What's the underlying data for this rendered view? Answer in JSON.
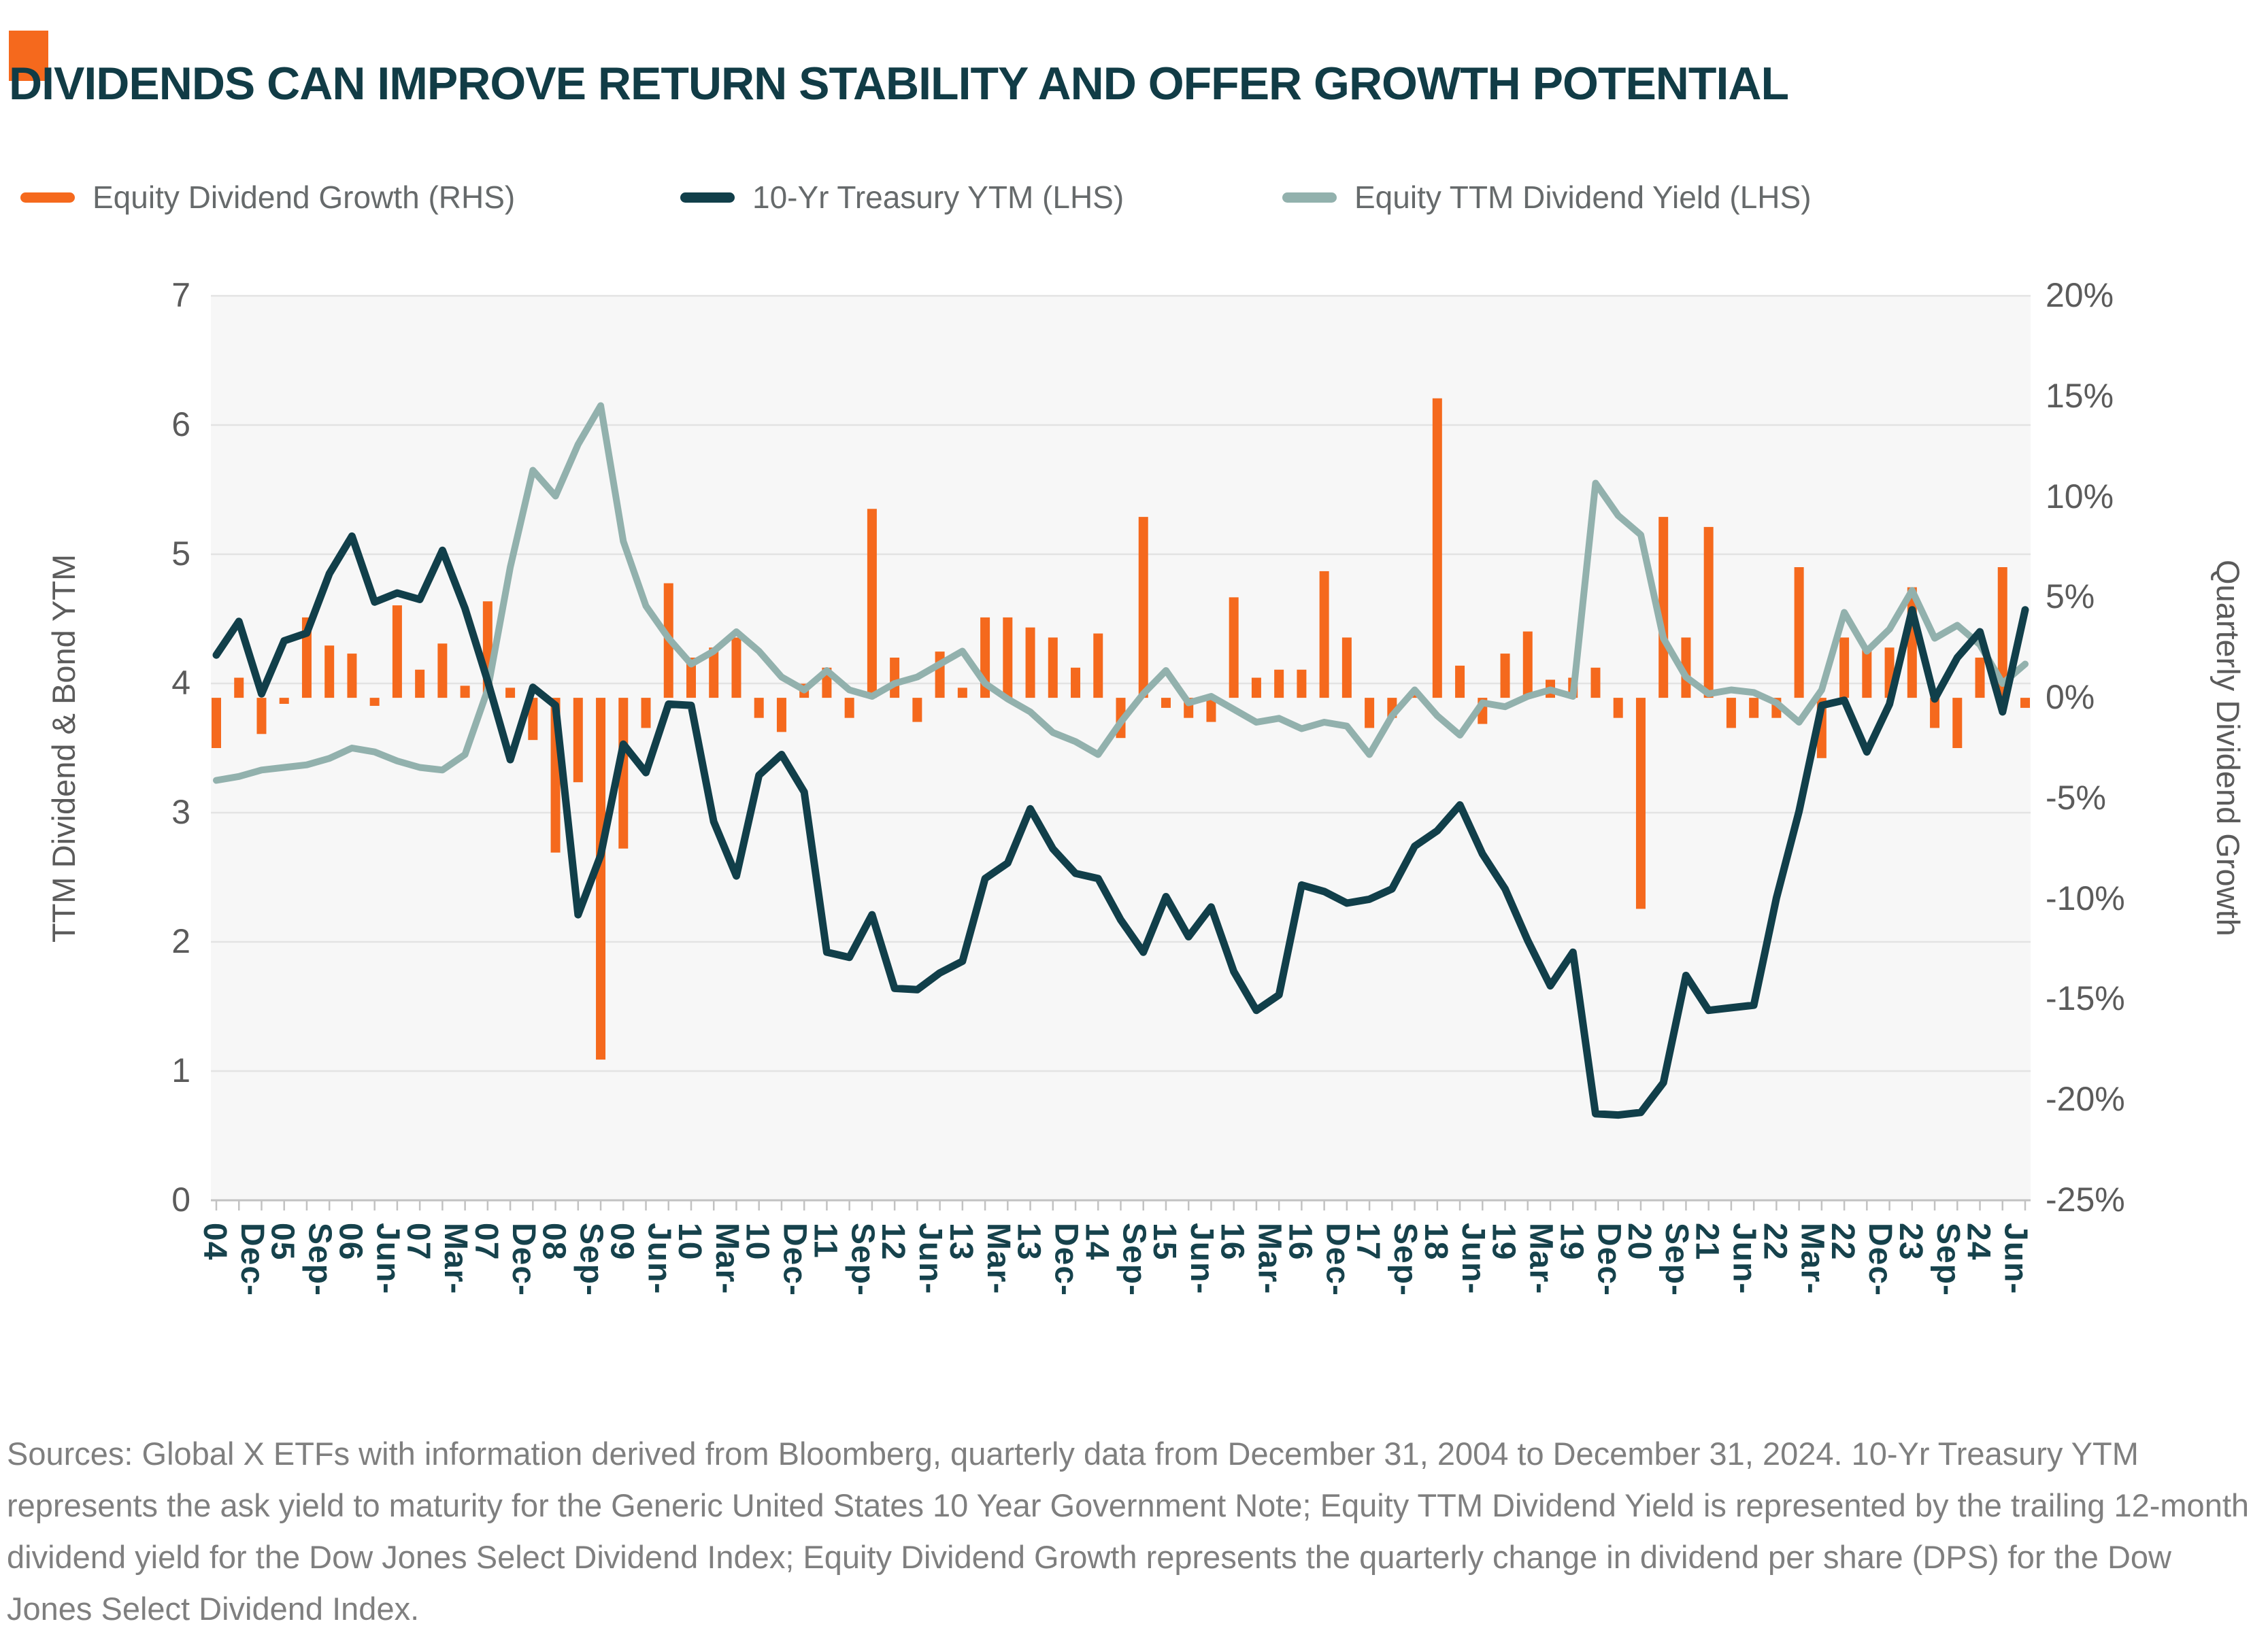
{
  "header": {
    "title": "DIVIDENDS CAN IMPROVE RETURN STABILITY AND OFFER GROWTH POTENTIAL",
    "title_color": "#113c46",
    "accent_color": "#f5691d"
  },
  "legend": [
    {
      "label": "Equity Dividend Growth (RHS)",
      "color": "#f5691d"
    },
    {
      "label": "10-Yr Treasury YTM (LHS)",
      "color": "#113f4a"
    },
    {
      "label": "Equity TTM Dividend Yield (LHS)",
      "color": "#92b1ad"
    }
  ],
  "footer": {
    "text": "Sources: Global X ETFs with information derived from Bloomberg, quarterly data from December 31, 2004 to December 31, 2024. 10-Yr Treasury YTM represents the ask yield to maturity for the Generic United States 10 Year Government Note; Equity TTM Dividend Yield is represented by the trailing 12-month dividend yield for the Dow Jones Select Dividend Index; Equity Dividend Growth represents the quarterly change in dividend per share (DPS) for the Dow Jones Select Dividend Index."
  },
  "chart_data": {
    "type": "bar",
    "subtype": "combo-bar-plus-two-lines",
    "title": "",
    "grid": "horizontal",
    "legend_position": "top",
    "plot_bg": "#f7f7f7",
    "gridline_color": "#e3e3e3",
    "axis_line_color": "#c2c2c2",
    "x_label_color": "#16424c",
    "left_axis": {
      "label": "TTM Dividend & Bond YTM",
      "min": 0,
      "max": 7,
      "ticks": [
        "0",
        "1",
        "2",
        "3",
        "4",
        "5",
        "6",
        "7"
      ]
    },
    "right_axis": {
      "label": "Quarterly Dividend Growth",
      "min": -25,
      "max": 20,
      "ticks": [
        "20%",
        "15%",
        "10%",
        "5%",
        "0%",
        "-5%",
        "-10%",
        "-15%",
        "-20%",
        "-25%"
      ]
    },
    "x_tick_labels": [
      "Dec-04",
      "Sep-05",
      "Jun-06",
      "Mar-07",
      "Dec-07",
      "Sep-08",
      "Jun-09",
      "Mar-10",
      "Dec-10",
      "Sep-11",
      "Jun-12",
      "Mar-13",
      "Dec-13",
      "Sep-14",
      "Jun-15",
      "Mar-16",
      "Dec-16",
      "Sep-17",
      "Jun-18",
      "Mar-19",
      "Dec-19",
      "Sep-20",
      "Jun-21",
      "Mar-22",
      "Dec-22",
      "Sep-23",
      "Jun-24"
    ],
    "x_tick_every": 3,
    "categories": [
      "Dec-04",
      "Mar-05",
      "Jun-05",
      "Sep-05",
      "Dec-05",
      "Mar-06",
      "Jun-06",
      "Sep-06",
      "Dec-06",
      "Mar-07",
      "Jun-07",
      "Sep-07",
      "Dec-07",
      "Mar-08",
      "Jun-08",
      "Sep-08",
      "Dec-08",
      "Mar-09",
      "Jun-09",
      "Sep-09",
      "Dec-09",
      "Mar-10",
      "Jun-10",
      "Sep-10",
      "Dec-10",
      "Mar-11",
      "Jun-11",
      "Sep-11",
      "Dec-11",
      "Mar-12",
      "Jun-12",
      "Sep-12",
      "Dec-12",
      "Mar-13",
      "Jun-13",
      "Sep-13",
      "Dec-13",
      "Mar-14",
      "Jun-14",
      "Sep-14",
      "Dec-14",
      "Mar-15",
      "Jun-15",
      "Sep-15",
      "Dec-15",
      "Mar-16",
      "Jun-16",
      "Sep-16",
      "Dec-16",
      "Mar-17",
      "Jun-17",
      "Sep-17",
      "Dec-17",
      "Mar-18",
      "Jun-18",
      "Sep-18",
      "Dec-18",
      "Mar-19",
      "Jun-19",
      "Sep-19",
      "Dec-19",
      "Mar-20",
      "Jun-20",
      "Sep-20",
      "Dec-20",
      "Mar-21",
      "Jun-21",
      "Sep-21",
      "Dec-21",
      "Mar-22",
      "Jun-22",
      "Sep-22",
      "Dec-22",
      "Mar-23",
      "Jun-23",
      "Sep-23",
      "Dec-23",
      "Mar-24",
      "Jun-24",
      "Sep-24",
      "Dec-24"
    ],
    "series": [
      {
        "name": "Equity Dividend Growth (RHS)",
        "type": "bar",
        "axis": "right",
        "unit": "%",
        "color": "#f5691d",
        "values": [
          -2.5,
          1.0,
          -1.8,
          -0.3,
          4.0,
          2.6,
          2.2,
          -0.4,
          4.6,
          1.4,
          2.7,
          0.6,
          4.8,
          0.5,
          -2.1,
          -7.7,
          -4.2,
          -18.0,
          -7.5,
          -1.5,
          5.7,
          2.0,
          2.5,
          3.0,
          -1.0,
          -1.7,
          0.7,
          1.5,
          -1.0,
          9.4,
          2.0,
          -1.2,
          2.3,
          0.5,
          4.0,
          4.0,
          3.5,
          3.0,
          1.5,
          3.2,
          -2.0,
          9.0,
          -0.5,
          -1.0,
          -1.2,
          5.0,
          1.0,
          1.4,
          1.4,
          6.3,
          3.0,
          -1.5,
          -1.0,
          0.3,
          14.9,
          1.6,
          -1.3,
          2.2,
          3.3,
          0.9,
          1.0,
          1.5,
          -1.0,
          -10.5,
          9.0,
          3.0,
          8.5,
          -1.5,
          -1.0,
          -1.0,
          6.5,
          -3.0,
          3.0,
          2.5,
          2.5,
          5.5,
          -1.5,
          -2.5,
          2.0,
          6.5,
          -0.5
        ]
      },
      {
        "name": "10-Yr Treasury YTM (LHS)",
        "type": "line",
        "axis": "left",
        "unit": "",
        "color": "#113f4a",
        "values": [
          4.22,
          4.48,
          3.92,
          4.33,
          4.39,
          4.85,
          5.14,
          4.63,
          4.7,
          4.65,
          5.03,
          4.58,
          4.02,
          3.41,
          3.97,
          3.83,
          2.21,
          2.67,
          3.53,
          3.31,
          3.84,
          3.83,
          2.93,
          2.51,
          3.29,
          3.45,
          3.16,
          1.92,
          1.88,
          2.21,
          1.64,
          1.63,
          1.76,
          1.85,
          2.49,
          2.61,
          3.03,
          2.72,
          2.53,
          2.49,
          2.17,
          1.92,
          2.35,
          2.04,
          2.27,
          1.77,
          1.47,
          1.59,
          2.44,
          2.39,
          2.3,
          2.33,
          2.41,
          2.74,
          2.86,
          3.06,
          2.68,
          2.41,
          2.01,
          1.66,
          1.92,
          0.67,
          0.66,
          0.68,
          0.91,
          1.74,
          1.47,
          1.49,
          1.51,
          2.34,
          3.01,
          3.83,
          3.87,
          3.47,
          3.84,
          4.57,
          3.88,
          4.2,
          4.4,
          3.78,
          4.57
        ]
      },
      {
        "name": "Equity TTM Dividend Yield (LHS)",
        "type": "line",
        "axis": "left",
        "unit": "",
        "color": "#92b1ad",
        "values": [
          3.25,
          3.28,
          3.33,
          3.35,
          3.37,
          3.42,
          3.5,
          3.47,
          3.4,
          3.35,
          3.33,
          3.45,
          3.95,
          4.9,
          5.65,
          5.45,
          5.85,
          6.15,
          5.1,
          4.6,
          4.35,
          4.15,
          4.25,
          4.4,
          4.25,
          4.05,
          3.95,
          4.1,
          3.95,
          3.9,
          4.0,
          4.05,
          4.15,
          4.25,
          4.0,
          3.88,
          3.78,
          3.62,
          3.55,
          3.45,
          3.7,
          3.92,
          4.1,
          3.85,
          3.9,
          3.8,
          3.7,
          3.73,
          3.65,
          3.7,
          3.67,
          3.45,
          3.75,
          3.95,
          3.75,
          3.6,
          3.85,
          3.82,
          3.9,
          3.95,
          3.9,
          5.55,
          5.3,
          5.15,
          4.35,
          4.05,
          3.92,
          3.95,
          3.93,
          3.85,
          3.7,
          3.95,
          4.55,
          4.25,
          4.42,
          4.72,
          4.35,
          4.45,
          4.3,
          4.0,
          4.15
        ]
      }
    ]
  }
}
